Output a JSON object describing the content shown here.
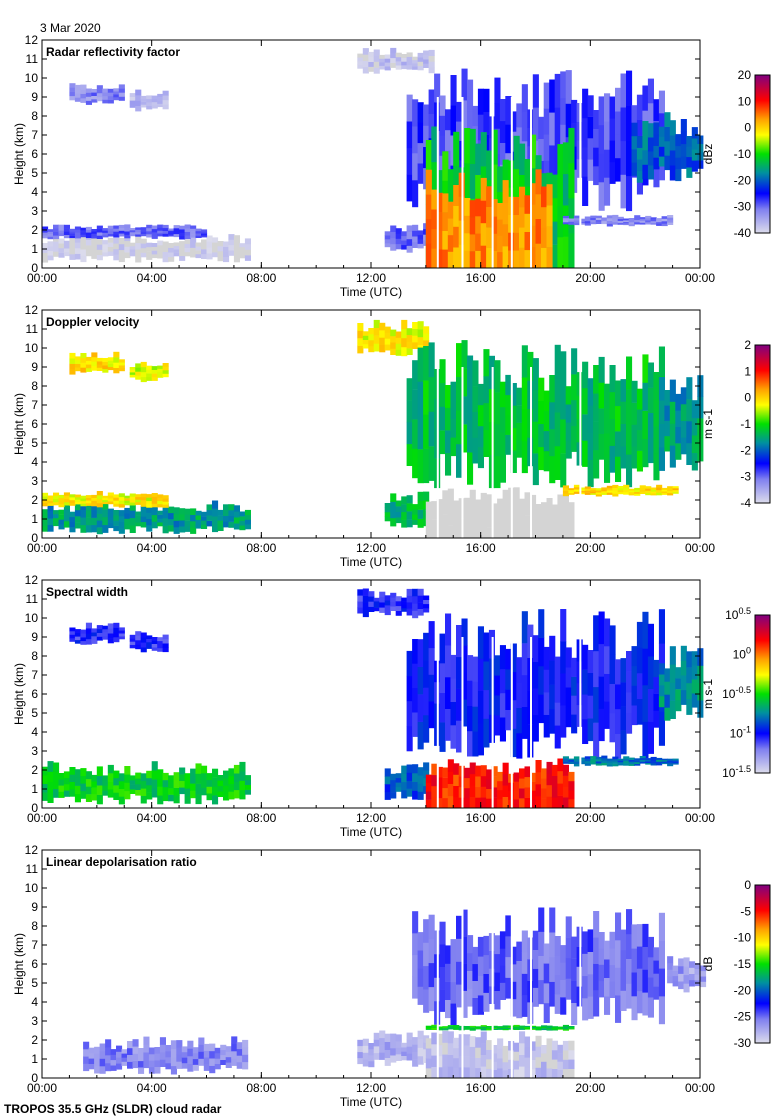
{
  "date_label": "3 Mar 2020",
  "footer": "TROPOS 35.5 GHz (SLDR) cloud radar",
  "chart_data": [
    {
      "type": "heatmap",
      "title": "Radar reflectivity factor",
      "xlabel": "Time (UTC)",
      "ylabel": "Height (km)",
      "xlim_hours": [
        0,
        24
      ],
      "ylim": [
        0,
        12
      ],
      "xticks": [
        "00:00",
        "04:00",
        "08:00",
        "12:00",
        "16:00",
        "20:00",
        "00:00"
      ],
      "yticks": [
        "0",
        "1",
        "2",
        "3",
        "4",
        "5",
        "6",
        "7",
        "8",
        "9",
        "10",
        "11",
        "12"
      ],
      "colorbar": {
        "label": "dBz",
        "range": [
          -40,
          20
        ],
        "ticks": [
          "20",
          "10",
          "0",
          "-10",
          "-20",
          "-30",
          "-40"
        ],
        "scale": "linear"
      },
      "regions": [
        {
          "t0": 0.0,
          "t1": 7.5,
          "h0": 0.3,
          "h1": 1.8,
          "v": -40
        },
        {
          "t0": 0.0,
          "t1": 6.0,
          "h0": 1.5,
          "h1": 2.3,
          "v": -30
        },
        {
          "t0": 1.0,
          "t1": 3.0,
          "h0": 8.6,
          "h1": 9.8,
          "v": -32
        },
        {
          "t0": 3.2,
          "t1": 4.6,
          "h0": 8.2,
          "h1": 9.4,
          "v": -36
        },
        {
          "t0": 11.5,
          "t1": 14.2,
          "h0": 10.2,
          "h1": 11.6,
          "v": -38
        },
        {
          "t0": 12.5,
          "t1": 14.0,
          "h0": 0.8,
          "h1": 2.4,
          "v": -30
        },
        {
          "t0": 13.3,
          "t1": 22.5,
          "h0": 3.0,
          "h1": 10.5,
          "v": -28
        },
        {
          "t0": 14.0,
          "t1": 19.2,
          "h0": 0.0,
          "h1": 7.5,
          "v": -12
        },
        {
          "t0": 14.0,
          "t1": 18.5,
          "h0": 0.0,
          "h1": 5.2,
          "v": 4
        },
        {
          "t0": 19.0,
          "t1": 22.8,
          "h0": 2.2,
          "h1": 2.8,
          "v": -32
        },
        {
          "t0": 21.5,
          "t1": 24.0,
          "h0": 4.5,
          "h1": 8.2,
          "v": -20
        }
      ]
    },
    {
      "type": "heatmap",
      "title": "Doppler velocity",
      "xlabel": "Time (UTC)",
      "ylabel": "Height (km)",
      "xlim_hours": [
        0,
        24
      ],
      "ylim": [
        0,
        12
      ],
      "xticks": [
        "00:00",
        "04:00",
        "08:00",
        "12:00",
        "16:00",
        "20:00",
        "00:00"
      ],
      "yticks": [
        "0",
        "1",
        "2",
        "3",
        "4",
        "5",
        "6",
        "7",
        "8",
        "9",
        "10",
        "11",
        "12"
      ],
      "colorbar": {
        "label": "m s-1",
        "range": [
          -4,
          2
        ],
        "ticks": [
          "2",
          "1",
          "0",
          "-1",
          "-2",
          "-3",
          "-4"
        ],
        "scale": "linear"
      },
      "regions": [
        {
          "t0": 0.0,
          "t1": 7.5,
          "h0": 0.2,
          "h1": 2.0,
          "v": -1.6
        },
        {
          "t0": 0.0,
          "t1": 4.5,
          "h0": 1.6,
          "h1": 2.5,
          "v": -0.2
        },
        {
          "t0": 1.0,
          "t1": 3.0,
          "h0": 8.6,
          "h1": 9.8,
          "v": -0.1
        },
        {
          "t0": 3.2,
          "t1": 4.6,
          "h0": 8.2,
          "h1": 9.4,
          "v": -0.3
        },
        {
          "t0": 11.5,
          "t1": 14.0,
          "h0": 9.5,
          "h1": 11.5,
          "v": -0.2
        },
        {
          "t0": 12.5,
          "t1": 14.0,
          "h0": 0.4,
          "h1": 2.5,
          "v": -1.4
        },
        {
          "t0": 13.3,
          "t1": 22.5,
          "h0": 2.6,
          "h1": 10.5,
          "v": -1.3
        },
        {
          "t0": 14.0,
          "t1": 19.3,
          "h0": 0.0,
          "h1": 2.7,
          "v": -4.6
        },
        {
          "t0": 19.0,
          "t1": 23.0,
          "h0": 2.2,
          "h1": 2.8,
          "v": -0.1
        },
        {
          "t0": 22.5,
          "t1": 24.0,
          "h0": 3.5,
          "h1": 8.6,
          "v": -1.6
        }
      ]
    },
    {
      "type": "heatmap",
      "title": "Spectral width",
      "xlabel": "Time (UTC)",
      "ylabel": "Height (km)",
      "xlim_hours": [
        0,
        24
      ],
      "ylim": [
        0,
        12
      ],
      "xticks": [
        "00:00",
        "04:00",
        "08:00",
        "12:00",
        "16:00",
        "20:00",
        "00:00"
      ],
      "yticks": [
        "0",
        "1",
        "2",
        "3",
        "4",
        "5",
        "6",
        "7",
        "8",
        "9",
        "10",
        "11",
        "12"
      ],
      "colorbar": {
        "label": "m s-1",
        "range": [
          -1.5,
          0.5
        ],
        "ticks": [
          "10^0.5",
          "10^0",
          "10^-0.5",
          "10^-1",
          "10^-1.5"
        ],
        "scale": "log10"
      },
      "regions": [
        {
          "t0": 0.0,
          "t1": 7.5,
          "h0": 0.2,
          "h1": 2.5,
          "v": -0.55
        },
        {
          "t0": 1.0,
          "t1": 3.0,
          "h0": 8.6,
          "h1": 9.8,
          "v": -1.05
        },
        {
          "t0": 3.2,
          "t1": 4.6,
          "h0": 8.2,
          "h1": 9.4,
          "v": -1.05
        },
        {
          "t0": 11.5,
          "t1": 14.0,
          "h0": 10.0,
          "h1": 11.6,
          "v": -1.05
        },
        {
          "t0": 12.5,
          "t1": 14.0,
          "h0": 0.4,
          "h1": 2.5,
          "v": -0.85
        },
        {
          "t0": 13.3,
          "t1": 22.5,
          "h0": 2.6,
          "h1": 10.5,
          "v": -1.0
        },
        {
          "t0": 14.0,
          "t1": 19.3,
          "h0": 0.0,
          "h1": 2.7,
          "v": 0.15
        },
        {
          "t0": 19.0,
          "t1": 23.0,
          "h0": 2.2,
          "h1": 2.8,
          "v": -0.8
        },
        {
          "t0": 22.5,
          "t1": 24.0,
          "h0": 4.5,
          "h1": 8.6,
          "v": -0.75
        }
      ]
    },
    {
      "type": "heatmap",
      "title": "Linear depolarisation ratio",
      "xlabel": "Time (UTC)",
      "ylabel": "Height (km)",
      "xlim_hours": [
        0,
        24
      ],
      "ylim": [
        0,
        12
      ],
      "xticks": [
        "00:00",
        "04:00",
        "08:00",
        "12:00",
        "16:00",
        "20:00",
        "00:00"
      ],
      "yticks": [
        "0",
        "1",
        "2",
        "3",
        "4",
        "5",
        "6",
        "7",
        "8",
        "9",
        "10",
        "11",
        "12"
      ],
      "colorbar": {
        "label": "dB",
        "range": [
          -30,
          0
        ],
        "ticks": [
          "0",
          "-5",
          "-10",
          "-15",
          "-20",
          "-25",
          "-30"
        ],
        "scale": "linear"
      },
      "regions": [
        {
          "t0": 1.5,
          "t1": 7.5,
          "h0": 0.2,
          "h1": 2.2,
          "v": -26
        },
        {
          "t0": 11.5,
          "t1": 14.0,
          "h0": 0.5,
          "h1": 2.5,
          "v": -28
        },
        {
          "t0": 13.5,
          "t1": 22.5,
          "h0": 2.8,
          "h1": 9.0,
          "v": -25
        },
        {
          "t0": 14.0,
          "t1": 19.3,
          "h0": 0.0,
          "h1": 2.5,
          "v": -29
        },
        {
          "t0": 14.0,
          "t1": 19.3,
          "h0": 2.5,
          "h1": 2.8,
          "v": -16
        },
        {
          "t0": 22.8,
          "t1": 24.0,
          "h0": 4.5,
          "h1": 6.5,
          "v": -27
        }
      ]
    }
  ]
}
